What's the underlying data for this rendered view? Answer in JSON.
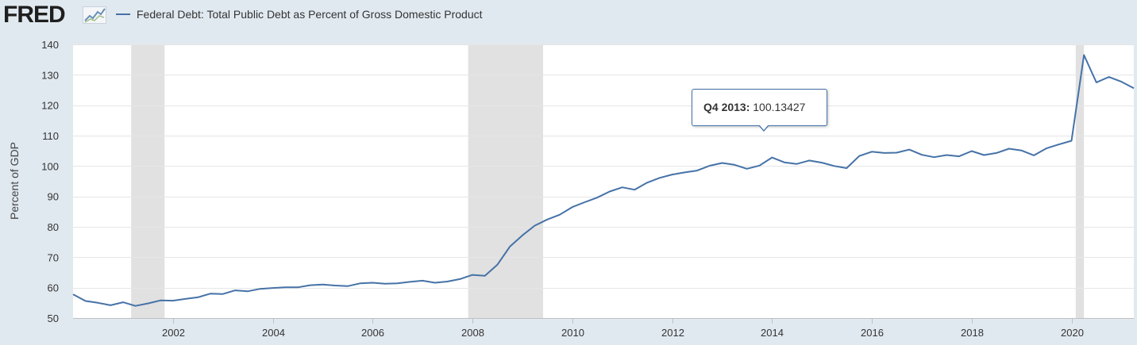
{
  "header": {
    "logo_text": "FRED",
    "logo_icon": "fred-chart-icon",
    "legend_label": "Federal Debt: Total Public Debt as Percent of Gross Domestic Product"
  },
  "tooltip": {
    "date": "Q4 2013:",
    "value": "100.13427"
  },
  "colors": {
    "series": "#4572a7",
    "background": "#e1e9f0",
    "plot": "#ffffff",
    "recession": "#e1e1e1",
    "grid": "#e6e6e6"
  },
  "chart_data": {
    "type": "line",
    "title": "",
    "xlabel": "",
    "ylabel": "Percent of GDP",
    "ylim": [
      50,
      140
    ],
    "yticks": [
      50,
      60,
      70,
      80,
      90,
      100,
      110,
      120,
      130,
      140
    ],
    "xlim": [
      "2000-01-01",
      "2021-04-01"
    ],
    "xticks": [
      "2002",
      "2004",
      "2006",
      "2008",
      "2010",
      "2012",
      "2014",
      "2016",
      "2018",
      "2020"
    ],
    "grid": true,
    "legend": "top-left",
    "recessions": [
      {
        "start": "2001-03-01",
        "end": "2001-11-01"
      },
      {
        "start": "2007-12-01",
        "end": "2009-06-01"
      },
      {
        "start": "2020-02-01",
        "end": "2020-04-01"
      }
    ],
    "series": [
      {
        "name": "Federal Debt: Total Public Debt as Percent of Gross Domestic Product",
        "x": [
          "2000-01-01",
          "2000-04-01",
          "2000-07-01",
          "2000-10-01",
          "2001-01-01",
          "2001-04-01",
          "2001-07-01",
          "2001-10-01",
          "2002-01-01",
          "2002-04-01",
          "2002-07-01",
          "2002-10-01",
          "2003-01-01",
          "2003-04-01",
          "2003-07-01",
          "2003-10-01",
          "2004-01-01",
          "2004-04-01",
          "2004-07-01",
          "2004-10-01",
          "2005-01-01",
          "2005-04-01",
          "2005-07-01",
          "2005-10-01",
          "2006-01-01",
          "2006-04-01",
          "2006-07-01",
          "2006-10-01",
          "2007-01-01",
          "2007-04-01",
          "2007-07-01",
          "2007-10-01",
          "2008-01-01",
          "2008-04-01",
          "2008-07-01",
          "2008-10-01",
          "2009-01-01",
          "2009-04-01",
          "2009-07-01",
          "2009-10-01",
          "2010-01-01",
          "2010-04-01",
          "2010-07-01",
          "2010-10-01",
          "2011-01-01",
          "2011-04-01",
          "2011-07-01",
          "2011-10-01",
          "2012-01-01",
          "2012-04-01",
          "2012-07-01",
          "2012-10-01",
          "2013-01-01",
          "2013-04-01",
          "2013-07-01",
          "2013-10-01",
          "2014-01-01",
          "2014-04-01",
          "2014-07-01",
          "2014-10-01",
          "2015-01-01",
          "2015-04-01",
          "2015-07-01",
          "2015-10-01",
          "2016-01-01",
          "2016-04-01",
          "2016-07-01",
          "2016-10-01",
          "2017-01-01",
          "2017-04-01",
          "2017-07-01",
          "2017-10-01",
          "2018-01-01",
          "2018-04-01",
          "2018-07-01",
          "2018-10-01",
          "2019-01-01",
          "2019-04-01",
          "2019-07-01",
          "2019-10-01",
          "2020-01-01",
          "2020-04-01",
          "2020-07-01",
          "2020-10-01",
          "2021-01-01",
          "2021-04-01"
        ],
        "y": [
          57.8,
          55.6,
          55.0,
          54.2,
          55.2,
          54.0,
          54.8,
          55.8,
          55.7,
          56.3,
          56.8,
          58.0,
          57.9,
          59.1,
          58.8,
          59.6,
          59.9,
          60.1,
          60.1,
          60.8,
          61.0,
          60.7,
          60.5,
          61.4,
          61.6,
          61.3,
          61.4,
          61.9,
          62.3,
          61.6,
          62.0,
          62.8,
          64.2,
          63.9,
          67.5,
          73.5,
          77.2,
          80.4,
          82.4,
          84.0,
          86.5,
          88.1,
          89.6,
          91.6,
          93.0,
          92.2,
          94.5,
          96.1,
          97.2,
          97.9,
          98.5,
          100.1,
          101.0,
          100.4,
          99.1,
          100.13427,
          102.8,
          101.2,
          100.7,
          101.8,
          101.1,
          100.0,
          99.3,
          103.3,
          104.7,
          104.3,
          104.4,
          105.4,
          103.7,
          102.9,
          103.6,
          103.2,
          104.9,
          103.6,
          104.3,
          105.7,
          105.1,
          103.5,
          105.8,
          107.1,
          108.3,
          136.5,
          127.5,
          129.3,
          127.7,
          125.6
        ]
      }
    ]
  }
}
